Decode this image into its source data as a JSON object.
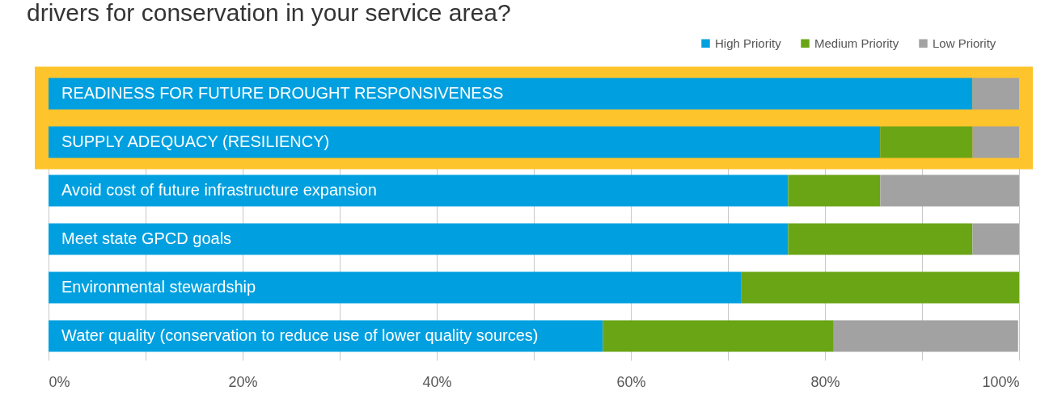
{
  "chart_data": {
    "type": "bar",
    "orientation": "horizontal",
    "stacked": true,
    "title": "drivers for conservation in your service area?",
    "categories": [
      "READINESS FOR FUTURE DROUGHT RESPONSIVENESS",
      "SUPPLY ADEQUACY (RESILIENCY)",
      "Avoid cost of future infrastructure expansion",
      "Meet state GPCD goals",
      "Environmental stewardship",
      "Water quality (conservation to reduce use of lower quality sources)"
    ],
    "series": [
      {
        "name": "High Priority",
        "color": "#00a0e0",
        "values": [
          95.2,
          85.7,
          76.2,
          76.2,
          71.4,
          57.1
        ]
      },
      {
        "name": "Medium Priority",
        "color": "#6aa516",
        "values": [
          0,
          9.5,
          9.5,
          19.0,
          28.6,
          23.8
        ]
      },
      {
        "name": "Low Priority",
        "color": "#a2a2a2",
        "values": [
          4.8,
          4.8,
          14.3,
          4.8,
          0,
          19.0
        ]
      }
    ],
    "xlim": [
      0,
      100
    ],
    "xticks": [
      {
        "value": 0,
        "label": "0%"
      },
      {
        "value": 10,
        "label": null
      },
      {
        "value": 20,
        "label": "20%"
      },
      {
        "value": 30,
        "label": null
      },
      {
        "value": 40,
        "label": "40%"
      },
      {
        "value": 50,
        "label": null
      },
      {
        "value": 60,
        "label": "60%"
      },
      {
        "value": 70,
        "label": null
      },
      {
        "value": 80,
        "label": "80%"
      },
      {
        "value": 90,
        "label": null
      },
      {
        "value": 100,
        "label": "100%"
      }
    ],
    "bands": [
      {
        "axis": "y",
        "from": "READINESS FOR FUTURE DROUGHT RESPONSIVENESS",
        "to": "SUPPLY ADEQUACY (RESILIENCY)",
        "color": "#fdc42c"
      }
    ],
    "grid": "x",
    "legend": "top right"
  }
}
